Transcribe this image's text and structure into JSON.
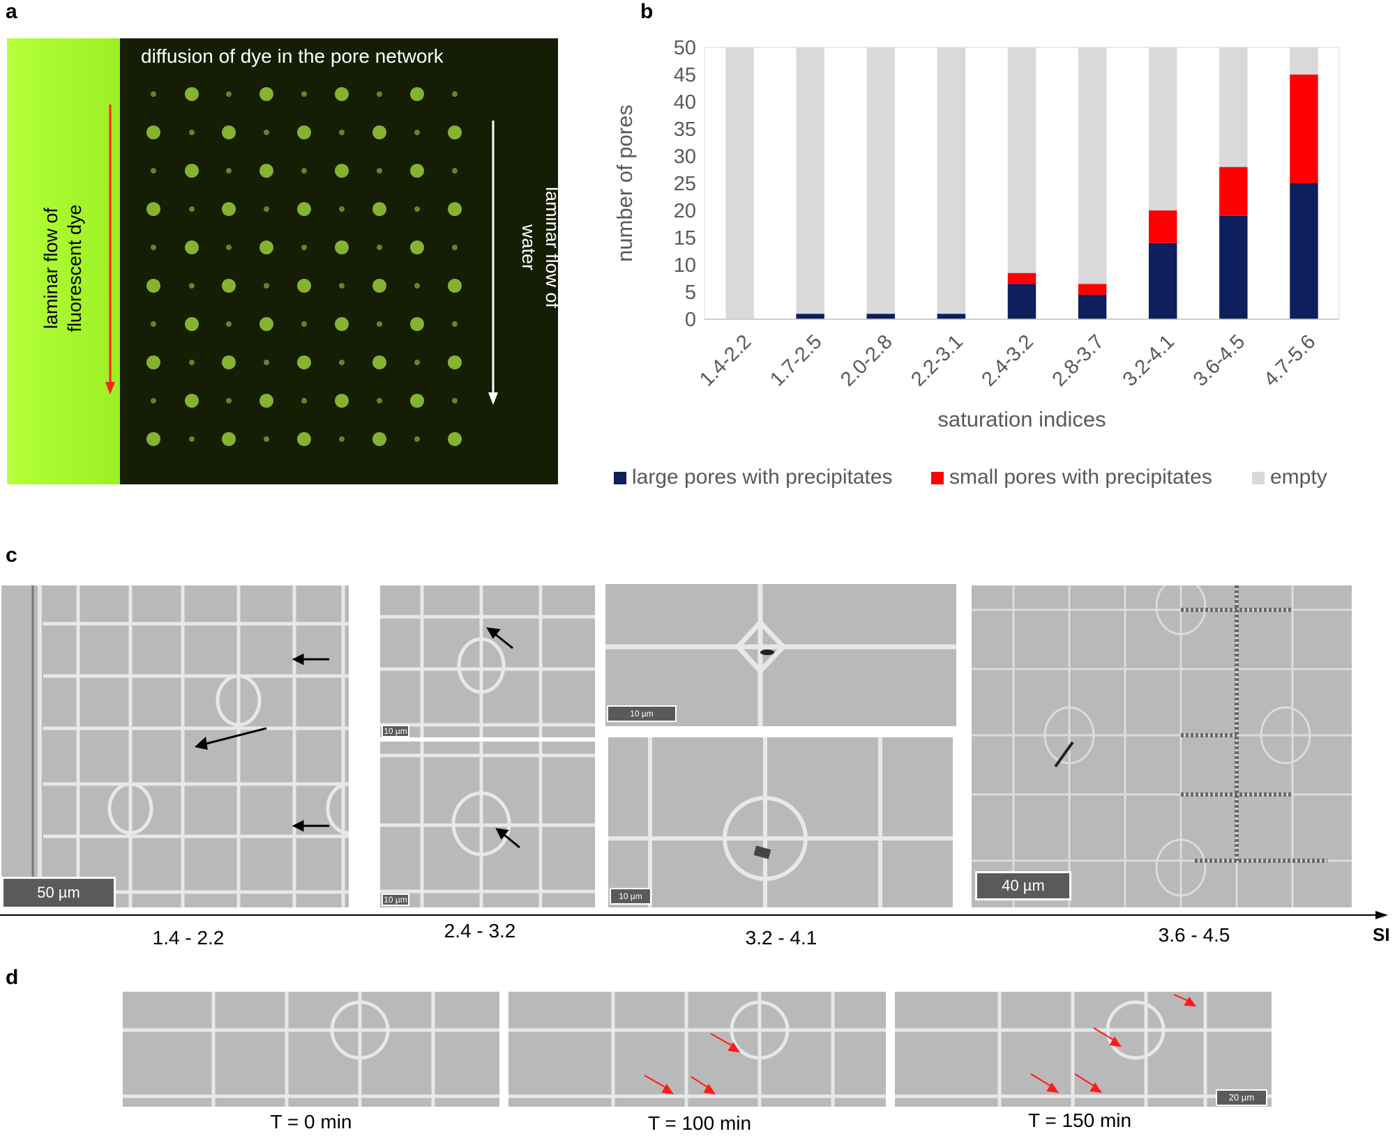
{
  "figure": {
    "panel_a": {
      "letter": "a",
      "top_label": "diffusion of dye in the pore network",
      "left_label_line1": "laminar flow of",
      "left_label_line2": "fluorescent dye",
      "right_label_line1": "laminar flow of",
      "right_label_line2": "water",
      "colors": {
        "dye": "#a3ff2a",
        "background": "#151d04",
        "pores": "#9acc3a",
        "red_arrow": "#ff2020",
        "white_arrow": "#ffffff"
      }
    },
    "panel_b": {
      "letter": "b"
    },
    "panel_c": {
      "letter": "c",
      "scale_1": "50 µm",
      "scale_2a": "10 µm",
      "scale_2b": "10 µm",
      "scale_3a": "10 µm",
      "scale_3b": "10 µm",
      "scale_4": "40 µm",
      "axis_ticks": [
        "1.4 - 2.2",
        "2.4 - 3.2",
        "3.2 - 4.1",
        "3.6 - 4.5"
      ],
      "axis_label": "SI"
    },
    "panel_d": {
      "letter": "d",
      "times": [
        "T = 0 min",
        "T = 100 min",
        "T = 150 min"
      ],
      "scale": "20 µm"
    }
  },
  "chart_data": {
    "type": "bar",
    "stacked": true,
    "categories": [
      "1.4-2.2",
      "1.7-2.5",
      "2.0-2.8",
      "2.2-3.1",
      "2.4-3.2",
      "2.8-3.7",
      "3.2-4.1",
      "3.6-4.5",
      "4.7-5.6"
    ],
    "series": [
      {
        "name": "large pores with precipitates",
        "color": "#0d1f5c",
        "values": [
          0,
          1,
          1,
          1,
          6.5,
          4.5,
          14,
          19,
          25
        ]
      },
      {
        "name": "small pores with precipitates",
        "color": "#ff0000",
        "values": [
          0,
          0,
          0,
          0,
          2,
          2,
          6,
          9,
          20
        ]
      },
      {
        "name": "empty",
        "color": "#d9d9d9",
        "values": [
          50,
          49,
          49,
          49,
          41.5,
          43.5,
          30,
          22,
          5
        ]
      }
    ],
    "xlabel": "saturation indices",
    "ylabel": "number of pores",
    "ylim": [
      0,
      50
    ],
    "yticks": [
      0,
      5,
      10,
      15,
      20,
      25,
      30,
      35,
      40,
      45,
      50
    ],
    "grid": false,
    "legend": "bottom"
  }
}
